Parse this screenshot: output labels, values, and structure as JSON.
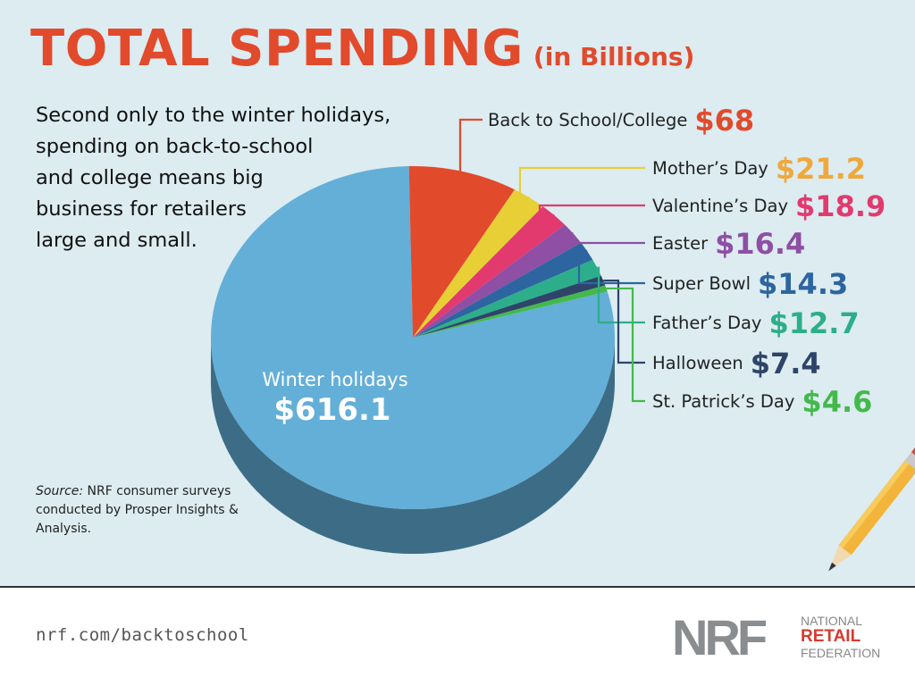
{
  "title": "TOTAL SPENDING",
  "subtitle": "(in Billions)",
  "intro": "Second only to the winter holidays,\nspending on back-to-school\nand college means big\nbusiness for retailers\nlarge and small.",
  "source": {
    "label": "Source:",
    "text": " NRF consumer surveys conducted by Prosper Insights & Analysis."
  },
  "footer": {
    "url": "nrf.com/backtoschool",
    "logo_mark": "NRF",
    "logo_line1": "NATIONAL",
    "logo_line2": "RETAIL",
    "logo_line3": "FEDERATION"
  },
  "chart_data": {
    "type": "pie",
    "title": "TOTAL SPENDING",
    "subtitle": "(in Billions)",
    "slices": [
      {
        "name": "Winter holidays",
        "value": 616.1,
        "label": "$616.1",
        "color": "#63afd8"
      },
      {
        "name": "Back to School/College",
        "value": 68,
        "label": "$68",
        "color": "#e24a2c"
      },
      {
        "name": "Mother’s Day",
        "value": 21.2,
        "label": "$21.2",
        "color": "#e8cf35"
      },
      {
        "name": "Valentine’s Day",
        "value": 18.9,
        "label": "$18.9",
        "color": "#e23a6e"
      },
      {
        "name": "Easter",
        "value": 16.4,
        "label": "$16.4",
        "color": "#8e4fa4"
      },
      {
        "name": "Super Bowl",
        "value": 14.3,
        "label": "$14.3",
        "color": "#2d65a0"
      },
      {
        "name": "Father’s Day",
        "value": 12.7,
        "label": "$12.7",
        "color": "#2dae8a"
      },
      {
        "name": "Halloween",
        "value": 7.4,
        "label": "$7.4",
        "color": "#2e4469"
      },
      {
        "name": "St. Patrick’s Day",
        "value": 4.6,
        "label": "$4.6",
        "color": "#44b94a"
      }
    ],
    "value_colors": [
      "#63afd8",
      "#e24a2c",
      "#f0a83a",
      "#e23a6e",
      "#8e4fa4",
      "#2d65a0",
      "#2dae8a",
      "#2e4469",
      "#44b94a"
    ]
  }
}
